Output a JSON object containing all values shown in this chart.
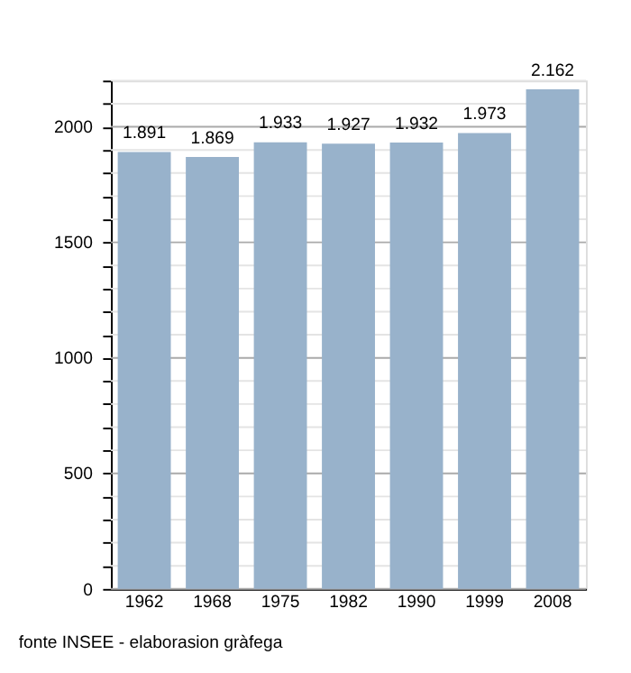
{
  "chart_data": {
    "type": "bar",
    "categories": [
      "1962",
      "1968",
      "1975",
      "1982",
      "1990",
      "1999",
      "2008"
    ],
    "values": [
      1891,
      1869,
      1933,
      1927,
      1932,
      1973,
      2162
    ],
    "value_labels": [
      "1.891",
      "1.869",
      "1.933",
      "1.927",
      "1.932",
      "1.973",
      "2.162"
    ],
    "color": "#98b2cb",
    "ylim": [
      0,
      2200
    ],
    "yticks": [
      0,
      {
        "value": 100,
        "label": null
      },
      {
        "value": 200,
        "label": null
      },
      {
        "value": 300,
        "label": null
      },
      {
        "value": 400,
        "label": null
      },
      500,
      {
        "value": 600,
        "label": null
      },
      {
        "value": 700,
        "label": null
      },
      {
        "value": 800,
        "label": null
      },
      {
        "value": 900,
        "label": null
      },
      1000,
      {
        "value": 1100,
        "label": null
      },
      {
        "value": 1200,
        "label": null
      },
      {
        "value": 1300,
        "label": null
      },
      {
        "value": 1400,
        "label": null
      },
      1500,
      {
        "value": 1600,
        "label": null
      },
      {
        "value": 1700,
        "label": null
      },
      {
        "value": 1800,
        "label": null
      },
      {
        "value": 1900,
        "label": null
      },
      2000,
      {
        "value": 2100,
        "label": null
      },
      {
        "value": 2200,
        "label": null
      }
    ],
    "grid": "y",
    "annotations": [
      "fonte INSEE - elaborasion gràfega"
    ]
  }
}
